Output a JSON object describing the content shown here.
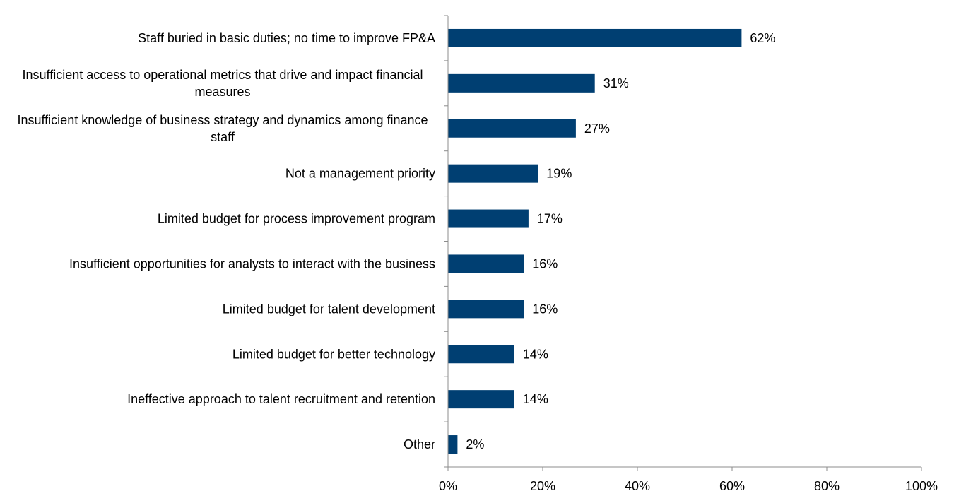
{
  "chart_data": {
    "type": "bar",
    "orientation": "horizontal",
    "title": "",
    "xlabel": "",
    "ylabel": "",
    "xlim": [
      0,
      100
    ],
    "x_ticks": [
      "0%",
      "20%",
      "40%",
      "60%",
      "80%",
      "100%"
    ],
    "x_tick_values": [
      0,
      20,
      40,
      60,
      80,
      100
    ],
    "grid": false,
    "legend": "none",
    "bar_color": "#003F72",
    "categories": [
      [
        "Staff buried in basic duties; no time to improve FP&A"
      ],
      [
        "Insufficient access to operational metrics that drive and impact financial",
        "measures"
      ],
      [
        "Insufficient knowledge of business strategy and dynamics among finance",
        "staff"
      ],
      [
        "Not a management priority"
      ],
      [
        "Limited budget for process improvement program"
      ],
      [
        "Insufficient opportunities for analysts to interact with the business"
      ],
      [
        "Limited budget for talent development"
      ],
      [
        "Limited budget for better technology"
      ],
      [
        "Ineffective approach to talent recruitment and retention"
      ],
      [
        "Other"
      ]
    ],
    "values": [
      62,
      31,
      27,
      19,
      17,
      16,
      16,
      14,
      14,
      2
    ],
    "data_labels": [
      "62%",
      "31%",
      "27%",
      "19%",
      "17%",
      "16%",
      "16%",
      "14%",
      "14%",
      "2%"
    ]
  }
}
